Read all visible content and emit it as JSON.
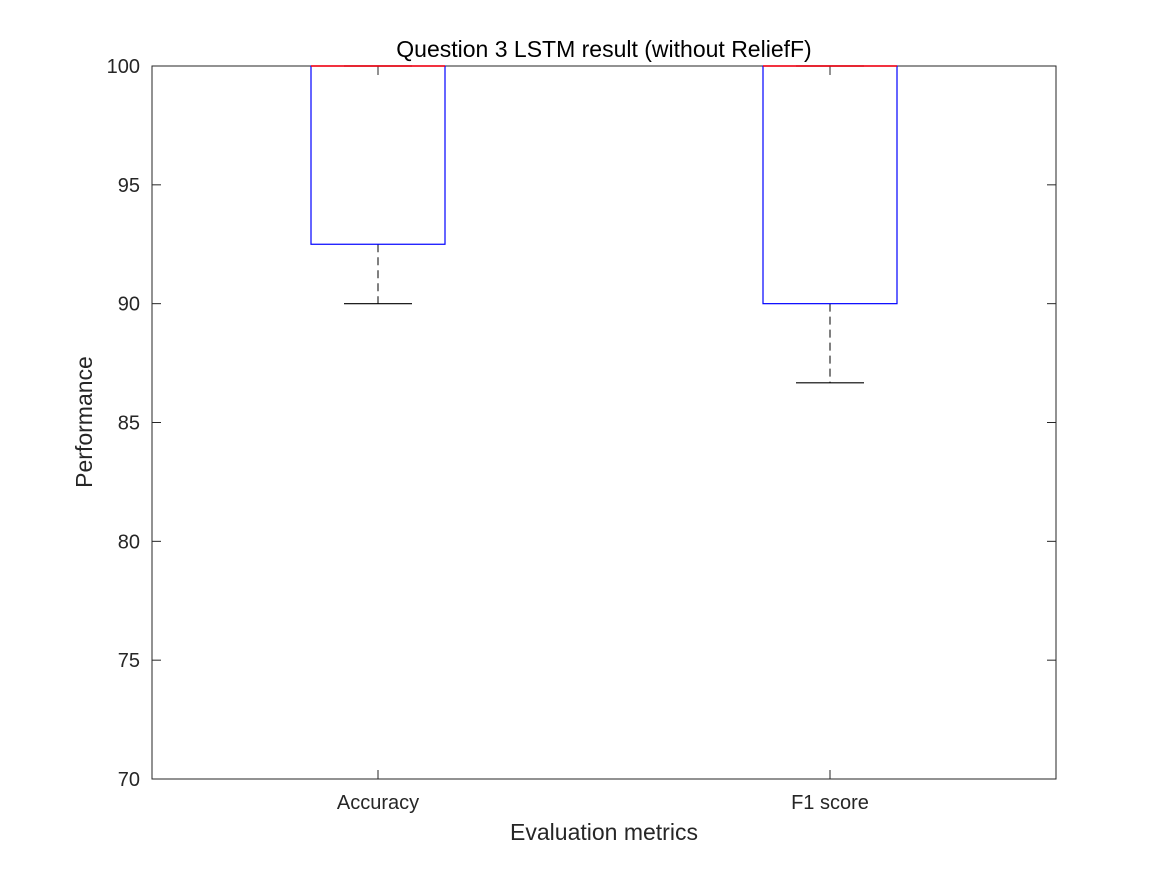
{
  "chart_data": {
    "type": "boxplot",
    "title": "Question 3 LSTM result (without ReliefF)",
    "xlabel": "Evaluation metrics",
    "ylabel": "Performance",
    "ylim": [
      70,
      100
    ],
    "yticks": [
      70,
      75,
      80,
      85,
      90,
      95,
      100
    ],
    "categories": [
      "Accuracy",
      "F1 score"
    ],
    "boxes": [
      {
        "name": "Accuracy",
        "whisker_low": 90,
        "q1": 92.5,
        "median": 100,
        "q3": 100,
        "whisker_high": 100
      },
      {
        "name": "F1 score",
        "whisker_low": 86.67,
        "q1": 90,
        "median": 100,
        "q3": 100,
        "whisker_high": 100
      }
    ],
    "grid": false,
    "colors": {
      "box": "#0000ff",
      "median": "#ff0000",
      "whisker": "#000000",
      "axis": "#262626"
    }
  }
}
